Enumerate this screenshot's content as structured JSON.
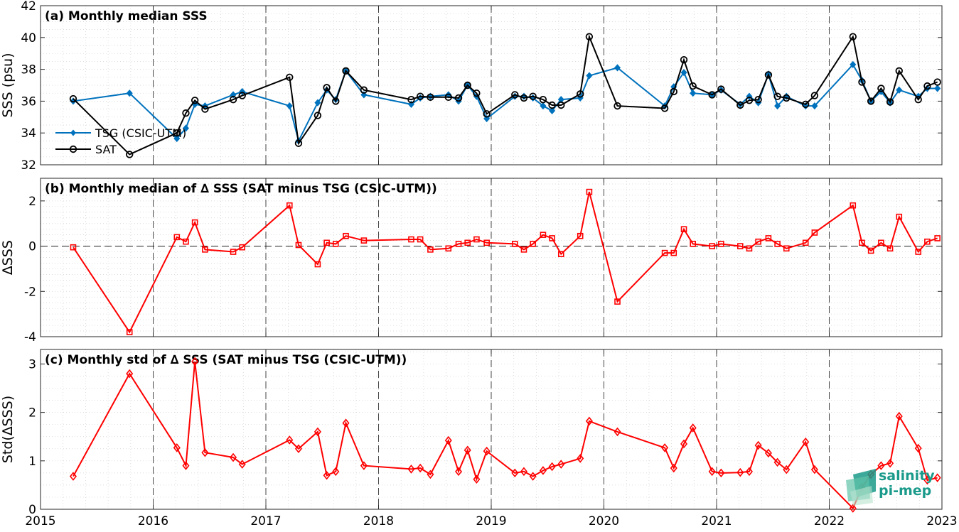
{
  "chart_data": [
    {
      "type": "line",
      "title": "(a) Monthly median SSS",
      "ylabel": "SSS (psu)",
      "xlim": [
        2015,
        2023
      ],
      "ylim": [
        32,
        42
      ],
      "yticks": [
        32,
        34,
        36,
        38,
        40,
        42
      ],
      "legend_position": "lower-left",
      "series": [
        {
          "name": "TSG (CSIC-UTM)",
          "color": "#0072BD",
          "marker": "diamond-filled",
          "points": [
            [
              2015.29,
              36.0
            ],
            [
              2015.79,
              36.5
            ],
            [
              2016.21,
              33.65
            ],
            [
              2016.29,
              34.3
            ],
            [
              2016.37,
              35.8
            ],
            [
              2016.46,
              35.7
            ],
            [
              2016.71,
              36.4
            ],
            [
              2016.79,
              36.6
            ],
            [
              2017.21,
              35.7
            ],
            [
              2017.29,
              33.5
            ],
            [
              2017.46,
              35.9
            ],
            [
              2017.54,
              36.7
            ],
            [
              2017.62,
              36.1
            ],
            [
              2017.71,
              37.9
            ],
            [
              2017.87,
              36.4
            ],
            [
              2018.29,
              35.8
            ],
            [
              2018.37,
              36.2
            ],
            [
              2018.46,
              36.3
            ],
            [
              2018.62,
              36.4
            ],
            [
              2018.71,
              36.0
            ],
            [
              2018.79,
              37.0
            ],
            [
              2018.87,
              36.3
            ],
            [
              2018.96,
              34.9
            ],
            [
              2019.21,
              36.3
            ],
            [
              2019.29,
              36.3
            ],
            [
              2019.37,
              36.2
            ],
            [
              2019.46,
              35.7
            ],
            [
              2019.54,
              35.4
            ],
            [
              2019.62,
              36.1
            ],
            [
              2019.79,
              36.2
            ],
            [
              2019.87,
              37.6
            ],
            [
              2020.12,
              38.1
            ],
            [
              2020.54,
              35.7
            ],
            [
              2020.62,
              36.9
            ],
            [
              2020.71,
              37.8
            ],
            [
              2020.79,
              36.5
            ],
            [
              2020.96,
              36.4
            ],
            [
              2021.04,
              36.7
            ],
            [
              2021.21,
              35.8
            ],
            [
              2021.29,
              36.3
            ],
            [
              2021.37,
              35.9
            ],
            [
              2021.46,
              37.7
            ],
            [
              2021.54,
              35.7
            ],
            [
              2021.62,
              36.3
            ],
            [
              2021.79,
              35.7
            ],
            [
              2021.87,
              35.7
            ],
            [
              2022.21,
              38.3
            ],
            [
              2022.29,
              37.3
            ],
            [
              2022.37,
              36.0
            ],
            [
              2022.46,
              36.6
            ],
            [
              2022.54,
              35.9
            ],
            [
              2022.62,
              36.7
            ],
            [
              2022.79,
              36.3
            ],
            [
              2022.87,
              36.8
            ],
            [
              2022.96,
              36.8
            ]
          ]
        },
        {
          "name": "SAT",
          "color": "#000000",
          "marker": "circle-open",
          "points": [
            [
              2015.29,
              36.15
            ],
            [
              2015.79,
              32.65
            ],
            [
              2016.21,
              34.0
            ],
            [
              2016.29,
              35.25
            ],
            [
              2016.37,
              36.05
            ],
            [
              2016.46,
              35.5
            ],
            [
              2016.71,
              36.1
            ],
            [
              2016.79,
              36.35
            ],
            [
              2017.21,
              37.5
            ],
            [
              2017.29,
              33.35
            ],
            [
              2017.46,
              35.1
            ],
            [
              2017.54,
              36.85
            ],
            [
              2017.62,
              36.0
            ],
            [
              2017.71,
              37.9
            ],
            [
              2017.87,
              36.7
            ],
            [
              2018.29,
              36.1
            ],
            [
              2018.37,
              36.3
            ],
            [
              2018.46,
              36.25
            ],
            [
              2018.62,
              36.25
            ],
            [
              2018.71,
              36.2
            ],
            [
              2018.79,
              37.0
            ],
            [
              2018.87,
              36.5
            ],
            [
              2018.96,
              35.2
            ],
            [
              2019.21,
              36.4
            ],
            [
              2019.29,
              36.2
            ],
            [
              2019.37,
              36.3
            ],
            [
              2019.46,
              36.1
            ],
            [
              2019.54,
              35.75
            ],
            [
              2019.62,
              35.75
            ],
            [
              2019.79,
              36.45
            ],
            [
              2019.87,
              40.05
            ],
            [
              2020.12,
              35.7
            ],
            [
              2020.54,
              35.55
            ],
            [
              2020.62,
              36.6
            ],
            [
              2020.71,
              38.6
            ],
            [
              2020.79,
              36.95
            ],
            [
              2020.96,
              36.4
            ],
            [
              2021.04,
              36.75
            ],
            [
              2021.21,
              35.75
            ],
            [
              2021.29,
              36.05
            ],
            [
              2021.37,
              36.1
            ],
            [
              2021.46,
              37.65
            ],
            [
              2021.54,
              36.3
            ],
            [
              2021.62,
              36.2
            ],
            [
              2021.79,
              35.8
            ],
            [
              2021.87,
              36.35
            ],
            [
              2022.21,
              40.05
            ],
            [
              2022.29,
              37.2
            ],
            [
              2022.37,
              36.0
            ],
            [
              2022.46,
              36.8
            ],
            [
              2022.54,
              35.95
            ],
            [
              2022.62,
              37.9
            ],
            [
              2022.79,
              36.1
            ],
            [
              2022.87,
              36.95
            ],
            [
              2022.96,
              37.2
            ]
          ]
        }
      ]
    },
    {
      "type": "line",
      "title": "(b) Monthly median of ∆ SSS (SAT minus TSG (CSIC-UTM))",
      "ylabel": "∆SSS",
      "xlim": [
        2015,
        2023
      ],
      "ylim": [
        -4,
        3
      ],
      "yticks": [
        -4,
        -2,
        0,
        2
      ],
      "zero_line": "dashed",
      "series": [
        {
          "color": "#FF0000",
          "marker": "square-open",
          "points": [
            [
              2015.29,
              -0.05
            ],
            [
              2015.79,
              -3.8
            ],
            [
              2016.21,
              0.4
            ],
            [
              2016.29,
              0.2
            ],
            [
              2016.37,
              1.05
            ],
            [
              2016.46,
              -0.15
            ],
            [
              2016.71,
              -0.25
            ],
            [
              2016.79,
              -0.05
            ],
            [
              2017.21,
              1.8
            ],
            [
              2017.29,
              0.05
            ],
            [
              2017.46,
              -0.8
            ],
            [
              2017.54,
              0.15
            ],
            [
              2017.62,
              0.1
            ],
            [
              2017.71,
              0.45
            ],
            [
              2017.87,
              0.25
            ],
            [
              2018.29,
              0.3
            ],
            [
              2018.37,
              0.3
            ],
            [
              2018.46,
              -0.15
            ],
            [
              2018.62,
              -0.1
            ],
            [
              2018.71,
              0.1
            ],
            [
              2018.79,
              0.15
            ],
            [
              2018.87,
              0.3
            ],
            [
              2018.96,
              0.15
            ],
            [
              2019.21,
              0.1
            ],
            [
              2019.29,
              -0.15
            ],
            [
              2019.37,
              0.1
            ],
            [
              2019.46,
              0.5
            ],
            [
              2019.54,
              0.35
            ],
            [
              2019.62,
              -0.35
            ],
            [
              2019.79,
              0.45
            ],
            [
              2019.87,
              2.4
            ],
            [
              2020.12,
              -2.45
            ],
            [
              2020.54,
              -0.3
            ],
            [
              2020.62,
              -0.3
            ],
            [
              2020.71,
              0.75
            ],
            [
              2020.79,
              0.1
            ],
            [
              2020.96,
              0.0
            ],
            [
              2021.04,
              0.1
            ],
            [
              2021.21,
              0.0
            ],
            [
              2021.29,
              -0.1
            ],
            [
              2021.37,
              0.2
            ],
            [
              2021.46,
              0.35
            ],
            [
              2021.54,
              0.1
            ],
            [
              2021.62,
              -0.1
            ],
            [
              2021.79,
              0.15
            ],
            [
              2021.87,
              0.6
            ],
            [
              2022.21,
              1.8
            ],
            [
              2022.29,
              0.15
            ],
            [
              2022.37,
              -0.2
            ],
            [
              2022.46,
              0.15
            ],
            [
              2022.54,
              -0.1
            ],
            [
              2022.62,
              1.3
            ],
            [
              2022.79,
              -0.25
            ],
            [
              2022.87,
              0.2
            ],
            [
              2022.96,
              0.35
            ]
          ]
        }
      ]
    },
    {
      "type": "line",
      "title": "(c) Monthly std of ∆ SSS (SAT minus TSG (CSIC-UTM))",
      "ylabel": "Std(∆SSS)",
      "xlim": [
        2015,
        2023
      ],
      "ylim": [
        0,
        3.3
      ],
      "yticks": [
        0,
        1,
        2,
        3
      ],
      "xticks": [
        2015,
        2016,
        2017,
        2018,
        2019,
        2020,
        2021,
        2022,
        2023
      ],
      "series": [
        {
          "color": "#FF0000",
          "marker": "diamond-open",
          "points": [
            [
              2015.29,
              0.68
            ],
            [
              2015.79,
              2.8
            ],
            [
              2016.21,
              1.27
            ],
            [
              2016.29,
              0.9
            ],
            [
              2016.37,
              3.05
            ],
            [
              2016.46,
              1.17
            ],
            [
              2016.71,
              1.07
            ],
            [
              2016.79,
              0.93
            ],
            [
              2017.21,
              1.43
            ],
            [
              2017.29,
              1.25
            ],
            [
              2017.46,
              1.6
            ],
            [
              2017.54,
              0.7
            ],
            [
              2017.62,
              0.78
            ],
            [
              2017.71,
              1.78
            ],
            [
              2017.87,
              0.9
            ],
            [
              2018.29,
              0.83
            ],
            [
              2018.37,
              0.85
            ],
            [
              2018.46,
              0.72
            ],
            [
              2018.62,
              1.42
            ],
            [
              2018.71,
              0.78
            ],
            [
              2018.79,
              1.22
            ],
            [
              2018.87,
              0.62
            ],
            [
              2018.96,
              1.2
            ],
            [
              2019.21,
              0.75
            ],
            [
              2019.29,
              0.78
            ],
            [
              2019.37,
              0.68
            ],
            [
              2019.46,
              0.8
            ],
            [
              2019.54,
              0.88
            ],
            [
              2019.62,
              0.93
            ],
            [
              2019.79,
              1.05
            ],
            [
              2019.87,
              1.82
            ],
            [
              2020.12,
              1.6
            ],
            [
              2020.54,
              1.27
            ],
            [
              2020.62,
              0.85
            ],
            [
              2020.71,
              1.35
            ],
            [
              2020.79,
              1.68
            ],
            [
              2020.96,
              0.78
            ],
            [
              2021.04,
              0.75
            ],
            [
              2021.21,
              0.76
            ],
            [
              2021.29,
              0.78
            ],
            [
              2021.37,
              1.32
            ],
            [
              2021.46,
              1.16
            ],
            [
              2021.54,
              0.97
            ],
            [
              2021.62,
              0.82
            ],
            [
              2021.79,
              1.39
            ],
            [
              2021.87,
              0.82
            ],
            [
              2022.21,
              0.02
            ],
            [
              2022.29,
              0.45
            ],
            [
              2022.37,
              0.72
            ],
            [
              2022.46,
              0.9
            ],
            [
              2022.54,
              0.95
            ],
            [
              2022.62,
              1.92
            ],
            [
              2022.79,
              1.26
            ],
            [
              2022.87,
              0.6
            ],
            [
              2022.96,
              0.65
            ]
          ]
        }
      ]
    }
  ],
  "logo": {
    "line1": "salinity",
    "line2": "pi-mep"
  }
}
